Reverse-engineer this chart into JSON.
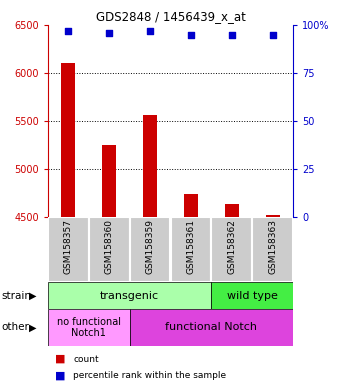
{
  "title": "GDS2848 / 1456439_x_at",
  "samples": [
    "GSM158357",
    "GSM158360",
    "GSM158359",
    "GSM158361",
    "GSM158362",
    "GSM158363"
  ],
  "bar_values": [
    6100,
    5250,
    5560,
    4740,
    4640,
    4520
  ],
  "scatter_values": [
    97,
    96,
    97,
    95,
    95,
    95
  ],
  "ylim_left": [
    4500,
    6500
  ],
  "ylim_right": [
    0,
    100
  ],
  "yticks_left": [
    4500,
    5000,
    5500,
    6000,
    6500
  ],
  "yticks_right": [
    0,
    25,
    50,
    75,
    100
  ],
  "bar_color": "#cc0000",
  "scatter_color": "#0000cc",
  "strain_transgenic_label": "transgenic",
  "strain_transgenic_ncols": 4,
  "strain_transgenic_color": "#aaffaa",
  "strain_wildtype_label": "wild type",
  "strain_wildtype_ncols": 2,
  "strain_wildtype_color": "#44ee44",
  "other_nofunc_label": "no functional\nNotch1",
  "other_nofunc_ncols": 2,
  "other_nofunc_color": "#ff99ff",
  "other_func_label": "functional Notch",
  "other_func_ncols": 4,
  "other_func_color": "#dd44dd",
  "left_axis_color": "#cc0000",
  "right_axis_color": "#0000cc",
  "bg_color": "#ffffff",
  "tick_label_area_color": "#cccccc",
  "tick_label_edge_color": "#ffffff",
  "legend_count_label": "count",
  "legend_pct_label": "percentile rank within the sample",
  "dotted_lines": [
    5000,
    5500,
    6000
  ],
  "bar_width": 0.35
}
